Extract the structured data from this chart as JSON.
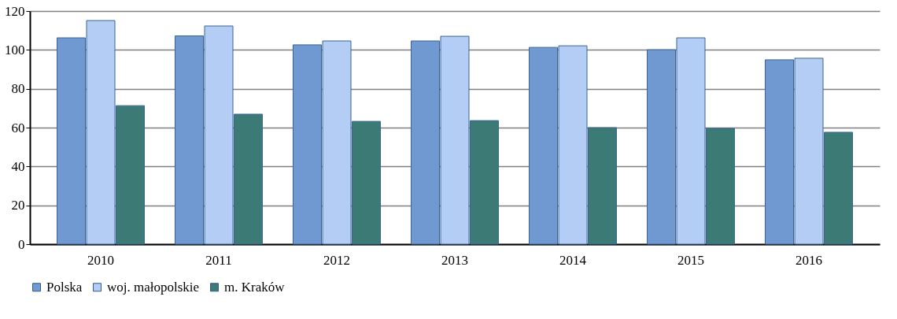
{
  "chart_data": {
    "type": "bar",
    "categories": [
      "2010",
      "2011",
      "2012",
      "2013",
      "2014",
      "2015",
      "2016"
    ],
    "series": [
      {
        "name": "Polska",
        "color": "#7099d1",
        "values": [
          106.2,
          107.2,
          102.6,
          104.6,
          101.3,
          100.1,
          94.9
        ]
      },
      {
        "name": "woj. małopolskie",
        "color": "#b4cdf4",
        "values": [
          115.1,
          112.3,
          104.6,
          107.0,
          102.1,
          106.2,
          95.7
        ]
      },
      {
        "name": "m. Kraków",
        "color": "#3c7a76",
        "values": [
          71.3,
          66.9,
          63.2,
          63.6,
          60.0,
          59.6,
          57.6
        ]
      }
    ],
    "ylim": [
      0,
      120
    ],
    "yticks": [
      0,
      20,
      40,
      60,
      80,
      100,
      120
    ],
    "grid": "y",
    "legend": "bottom"
  }
}
